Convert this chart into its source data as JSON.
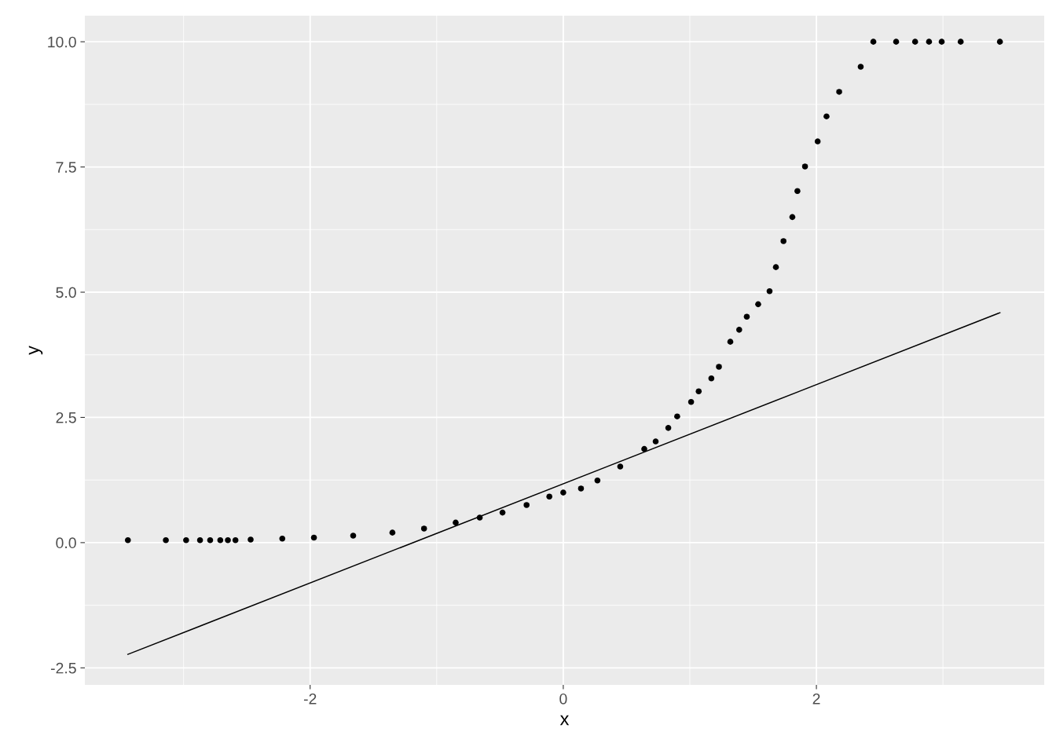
{
  "chart_data": {
    "type": "scatter",
    "xlabel": "x",
    "ylabel": "y",
    "xlim": [
      -3.78,
      3.8
    ],
    "ylim": [
      -2.84,
      10.52
    ],
    "xticks": [
      -2,
      0,
      2
    ],
    "yticks": [
      {
        "value": -2.5,
        "label": "-2.5"
      },
      {
        "value": 0,
        "label": "0.0"
      },
      {
        "value": 2.5,
        "label": "2.5"
      },
      {
        "value": 5,
        "label": "5.0"
      },
      {
        "value": 7.5,
        "label": "7.5"
      },
      {
        "value": 10,
        "label": "10.0"
      }
    ],
    "grid": true,
    "series": [
      {
        "marker": "circle",
        "color": "#000000",
        "x": [
          -3.44,
          -3.14,
          -2.98,
          -2.87,
          -2.79,
          -2.71,
          -2.65,
          -2.59,
          -2.47,
          -2.22,
          -1.97,
          -1.66,
          -1.35,
          -1.1,
          -0.85,
          -0.66,
          -0.48,
          -0.29,
          -0.11,
          0,
          0.14,
          0.27,
          0.45,
          0.64,
          0.73,
          0.83,
          0.9,
          1.01,
          1.07,
          1.17,
          1.23,
          1.32,
          1.39,
          1.45,
          1.54,
          1.63,
          1.68,
          1.74,
          1.81,
          1.85,
          1.91,
          2.01,
          2.08,
          2.18,
          2.35,
          2.45,
          2.63,
          2.78,
          2.89,
          2.99,
          3.14,
          3.45
        ],
        "values": [
          0.05,
          0.05,
          0.05,
          0.05,
          0.05,
          0.05,
          0.05,
          0.05,
          0.06,
          0.08,
          0.1,
          0.14,
          0.2,
          0.28,
          0.4,
          0.5,
          0.6,
          0.75,
          0.92,
          1.0,
          1.08,
          1.24,
          1.52,
          1.87,
          2.02,
          2.29,
          2.52,
          2.81,
          3.02,
          3.28,
          3.51,
          4.01,
          4.25,
          4.51,
          4.76,
          5.02,
          5.5,
          6.02,
          6.5,
          7.02,
          7.51,
          8.01,
          8.51,
          9.0,
          9.5,
          10,
          10,
          10,
          10,
          10,
          10,
          10
        ]
      },
      {
        "type": "line",
        "marker": "none",
        "color": "#000000",
        "x": [
          -3.44,
          3.45
        ],
        "values": [
          -2.23,
          4.59
        ]
      }
    ]
  }
}
